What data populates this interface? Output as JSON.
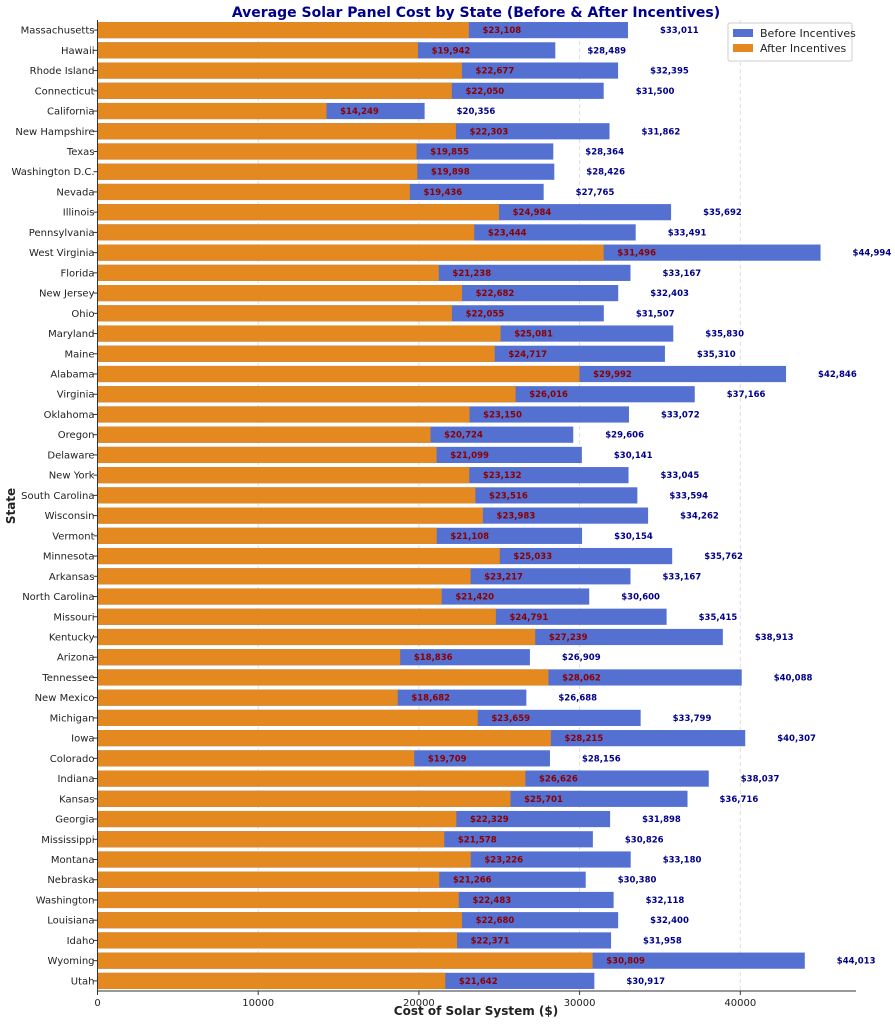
{
  "chart_data": {
    "type": "bar",
    "orientation": "horizontal",
    "title": "Average Solar Panel Cost by State (Before & After Incentives)",
    "xlabel": "Cost of Solar System ($)",
    "ylabel": "State",
    "xlim": [
      0,
      47200
    ],
    "xticks": [
      0,
      10000,
      20000,
      30000,
      40000
    ],
    "grid": "vertical",
    "legend_position": "top-right",
    "colors": {
      "before": "#5470d1",
      "after": "#e3891f",
      "before_label": "#00008b",
      "after_label": "#8b0000"
    },
    "categories": [
      "Massachusetts",
      "Hawaii",
      "Rhode Island",
      "Connecticut",
      "California",
      "New Hampshire",
      "Texas",
      "Washington D.C.",
      "Nevada",
      "Illinois",
      "Pennsylvania",
      "West Virginia",
      "Florida",
      "New Jersey",
      "Ohio",
      "Maryland",
      "Maine",
      "Alabama",
      "Virginia",
      "Oklahoma",
      "Oregon",
      "Delaware",
      "New York",
      "South Carolina",
      "Wisconsin",
      "Vermont",
      "Minnesota",
      "Arkansas",
      "North Carolina",
      "Missouri",
      "Kentucky",
      "Arizona",
      "Tennessee",
      "New Mexico",
      "Michigan",
      "Iowa",
      "Colorado",
      "Indiana",
      "Kansas",
      "Georgia",
      "Mississippi",
      "Montana",
      "Nebraska",
      "Washington",
      "Louisiana",
      "Idaho",
      "Wyoming",
      "Utah"
    ],
    "series": [
      {
        "name": "Before Incentives",
        "values": [
          33011,
          28489,
          32395,
          31500,
          20356,
          31862,
          28364,
          28426,
          27765,
          35692,
          33491,
          44994,
          33167,
          32403,
          31507,
          35830,
          35310,
          42846,
          37166,
          33072,
          29606,
          30141,
          33045,
          33594,
          34262,
          30154,
          35762,
          33167,
          30600,
          35415,
          38913,
          26909,
          40088,
          26688,
          33799,
          40307,
          28156,
          38037,
          36716,
          31898,
          30826,
          33180,
          30380,
          32118,
          32400,
          31958,
          44013,
          30917
        ]
      },
      {
        "name": "After Incentives",
        "values": [
          23108,
          19942,
          22677,
          22050,
          14249,
          22303,
          19855,
          19898,
          19436,
          24984,
          23444,
          31496,
          21238,
          22682,
          22055,
          25081,
          24717,
          29992,
          26016,
          23150,
          20724,
          21099,
          23132,
          23516,
          23983,
          21108,
          25033,
          23217,
          21420,
          24791,
          27239,
          18836,
          28062,
          18682,
          23659,
          28215,
          19709,
          26626,
          25701,
          22329,
          21578,
          23226,
          21266,
          22483,
          22680,
          22371,
          30809,
          21642
        ]
      }
    ]
  }
}
